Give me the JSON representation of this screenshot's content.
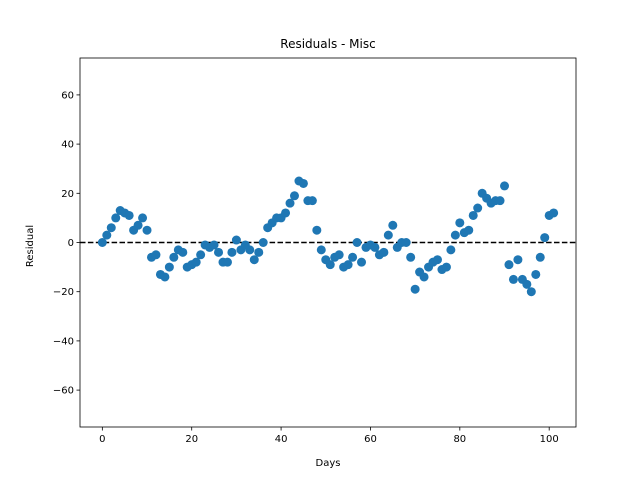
{
  "chart_data": {
    "type": "scatter",
    "title": "Residuals - Misc",
    "xlabel": "Days",
    "ylabel": "Residual",
    "xlim": [
      -5,
      106
    ],
    "ylim": [
      -75,
      75
    ],
    "xticks": [
      0,
      20,
      40,
      60,
      80,
      100
    ],
    "yticks": [
      -60,
      -40,
      -20,
      0,
      20,
      40,
      60
    ],
    "xtick_labels": [
      "0",
      "20",
      "40",
      "60",
      "80",
      "100"
    ],
    "ytick_labels": [
      "−60",
      "−40",
      "−20",
      "0",
      "20",
      "40",
      "60"
    ],
    "grid": false,
    "reference_line": {
      "y": 0,
      "style": "dashed",
      "color": "#000000"
    },
    "marker_color": "#1f77b4",
    "series": [
      {
        "x": [
          0,
          1,
          2,
          3,
          4,
          5,
          6,
          7,
          8,
          9,
          10,
          11,
          12,
          13,
          14,
          15,
          16,
          17,
          18,
          19,
          20,
          21,
          22,
          23,
          24,
          25,
          26,
          27,
          28,
          29,
          30,
          31,
          32,
          33,
          34,
          35,
          36,
          37,
          38,
          39,
          40,
          41,
          42,
          43,
          44,
          45,
          46,
          47,
          48,
          49,
          50,
          51,
          52,
          53,
          54,
          55,
          56,
          57,
          58,
          59,
          60,
          61,
          62,
          63,
          64,
          65,
          66,
          67,
          68,
          69,
          70,
          71,
          72,
          73,
          74,
          75,
          76,
          77,
          78,
          79,
          80,
          81,
          82,
          83,
          84,
          85,
          86,
          87,
          88,
          89,
          90,
          91,
          92,
          93,
          94,
          95,
          96,
          97,
          98,
          99,
          100,
          101
        ],
        "y": [
          0,
          3,
          6,
          10,
          13,
          12,
          11,
          5,
          7,
          10,
          5,
          -6,
          -5,
          -13,
          -14,
          -10,
          -6,
          -3,
          -4,
          -10,
          -9,
          -8,
          -5,
          -1,
          -2,
          -1,
          -4,
          -8,
          -8,
          -4,
          1,
          -3,
          -1,
          -3,
          -7,
          -4,
          0,
          6,
          8,
          10,
          10,
          12,
          16,
          19,
          25,
          24,
          17,
          17,
          5,
          -3,
          -7,
          -9,
          -6,
          -5,
          -10,
          -9,
          -6,
          0,
          -8,
          -2,
          -1,
          -2,
          -5,
          -4,
          3,
          7,
          -2,
          0,
          0,
          -6,
          -19,
          -12,
          -14,
          -10,
          -8,
          -7,
          -11,
          -10,
          -3,
          3,
          8,
          4,
          5,
          11,
          14,
          20,
          18,
          16,
          17,
          17,
          23,
          -9,
          -15,
          -7,
          -15,
          -17,
          -20,
          -13,
          -6,
          2,
          11,
          12
        ]
      }
    ]
  }
}
